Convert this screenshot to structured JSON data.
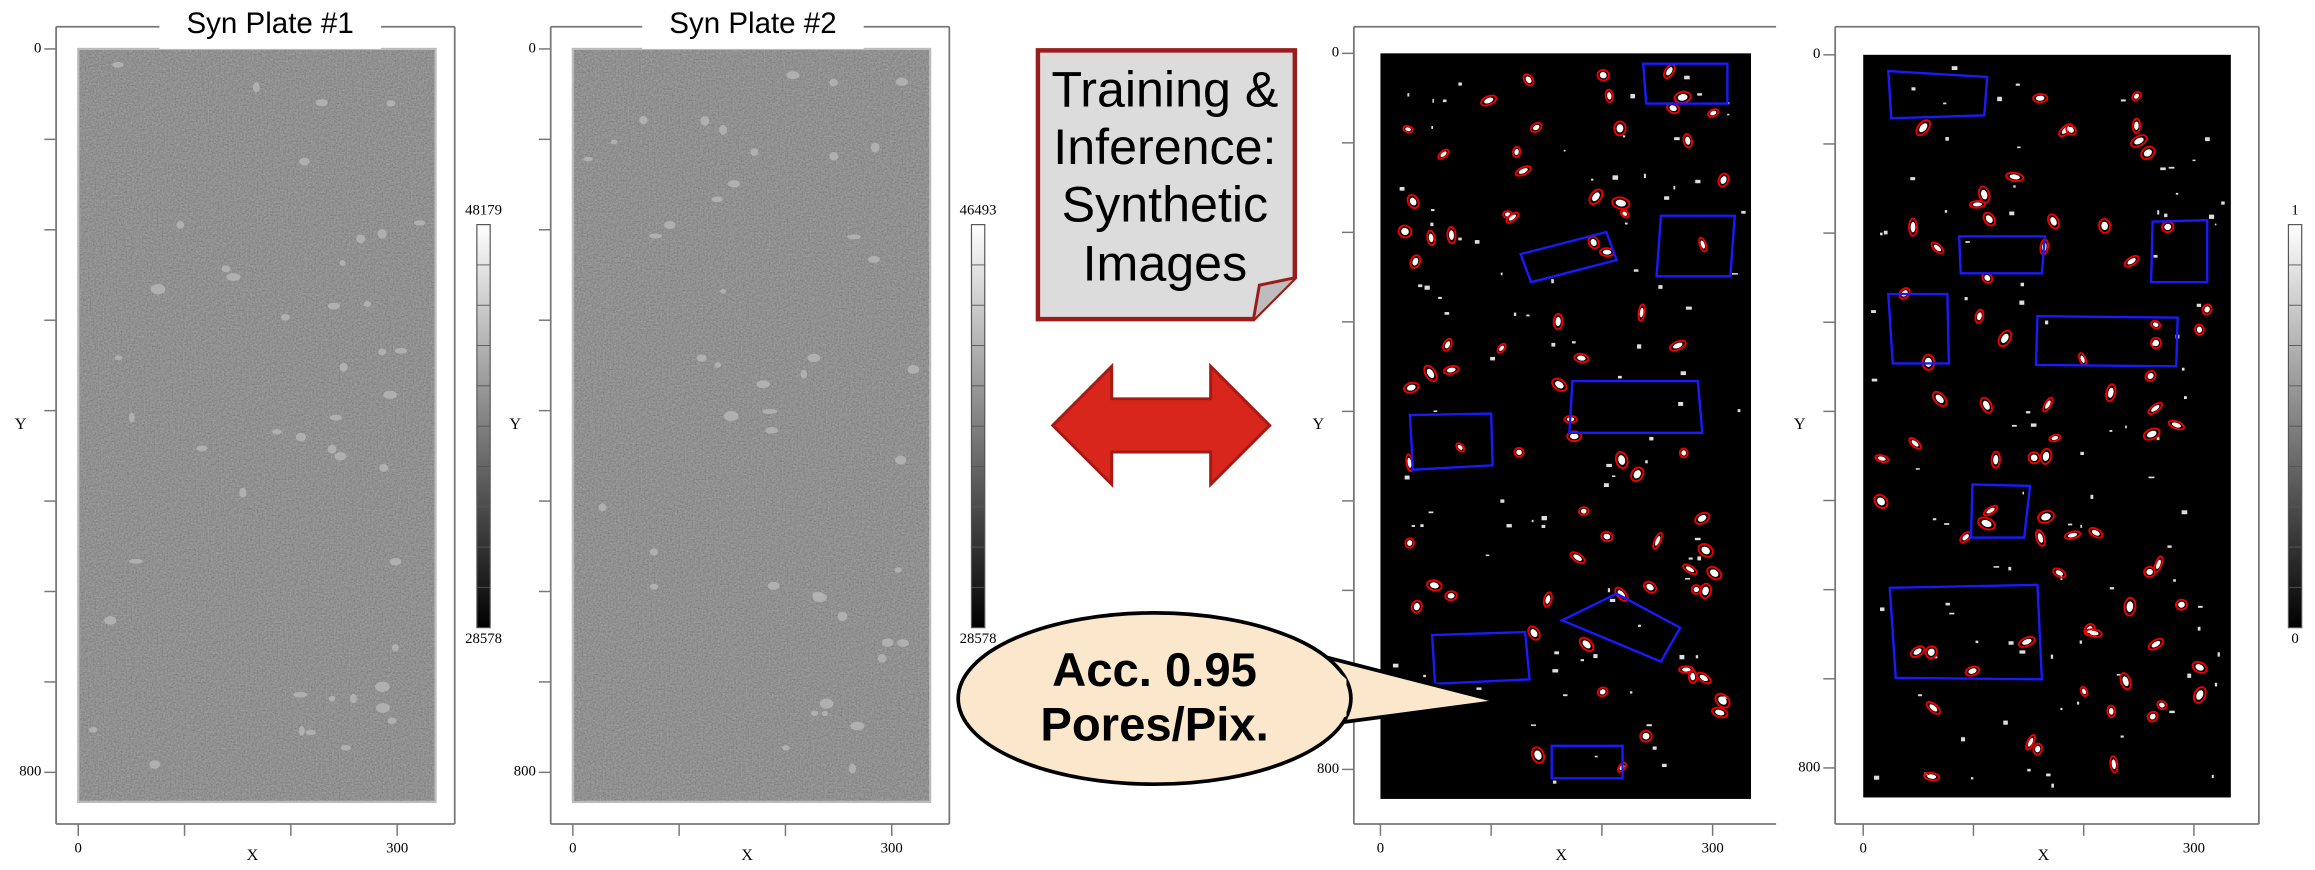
{
  "panels": [
    {
      "title": "Syn Plate #1",
      "y_axis_label": "Y",
      "x_axis_label": "X",
      "y_tick_labels": [
        "0",
        "800"
      ],
      "x_tick_labels": [
        "0",
        "300"
      ],
      "colorbar_labels": [
        "48179",
        "28578"
      ]
    },
    {
      "title": "Syn Plate #2",
      "y_axis_label": "Y",
      "x_axis_label": "X",
      "y_tick_labels": [
        "0",
        "800"
      ],
      "x_tick_labels": [
        "0",
        "300"
      ],
      "colorbar_labels": [
        "46493",
        "28578"
      ]
    },
    {
      "y_axis_label": "Y",
      "x_axis_label": "X",
      "y_tick_labels": [
        "0",
        "800"
      ],
      "x_tick_labels": [
        "0",
        "300"
      ]
    },
    {
      "y_axis_label": "Y",
      "x_axis_label": "X",
      "y_tick_labels": [
        "0",
        "800"
      ],
      "x_tick_labels": [
        "0",
        "300"
      ],
      "colorbar_labels": [
        "1",
        "0"
      ]
    }
  ],
  "note": {
    "lines": [
      "Training &",
      "Inference:",
      "Synthetic",
      "Images"
    ]
  },
  "callout": {
    "lines": [
      "Acc. 0.95",
      "Pores/Pix."
    ]
  }
}
